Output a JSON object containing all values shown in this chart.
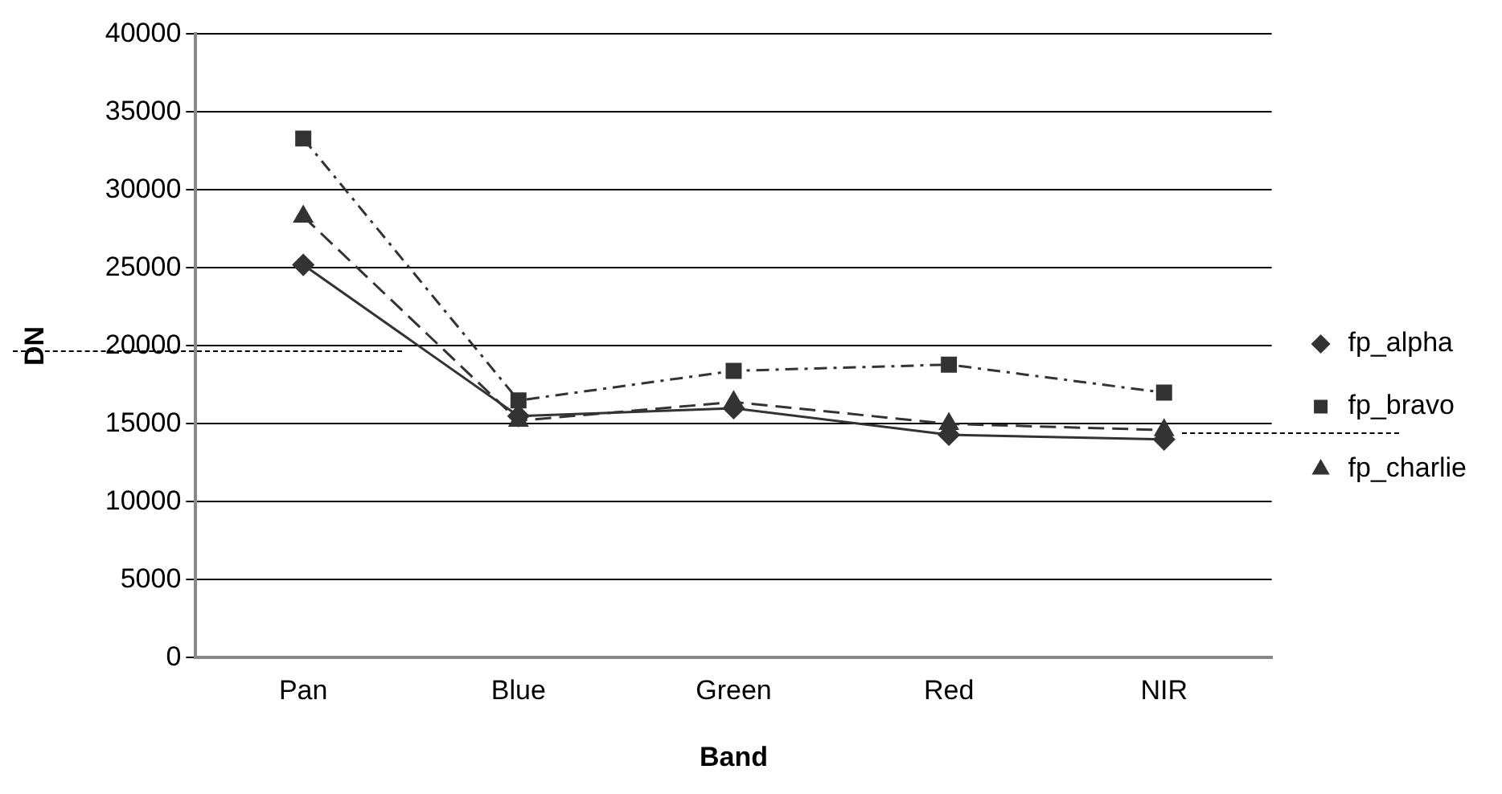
{
  "chart_data": {
    "type": "line",
    "xlabel": "Band",
    "ylabel": "DN",
    "categories": [
      "Pan",
      "Blue",
      "Green",
      "Red",
      "NIR"
    ],
    "series": [
      {
        "name": "fp_alpha",
        "color": "#333333",
        "line_style": "solid",
        "marker": "diamond",
        "values": [
          25200,
          15500,
          16000,
          14300,
          14000
        ]
      },
      {
        "name": "fp_bravo",
        "color": "#333333",
        "line_style": "dashdot",
        "marker": "square",
        "values": [
          33300,
          16500,
          18400,
          18800,
          17000
        ]
      },
      {
        "name": "fp_charlie",
        "color": "#333333",
        "line_style": "dashed",
        "marker": "triangle",
        "values": [
          28300,
          15200,
          16400,
          15000,
          14600
        ]
      }
    ],
    "ylim": [
      0,
      40000
    ],
    "yticks": [
      0,
      5000,
      10000,
      15000,
      20000,
      25000,
      30000,
      35000,
      40000
    ],
    "grid": "y",
    "legend": "right"
  }
}
